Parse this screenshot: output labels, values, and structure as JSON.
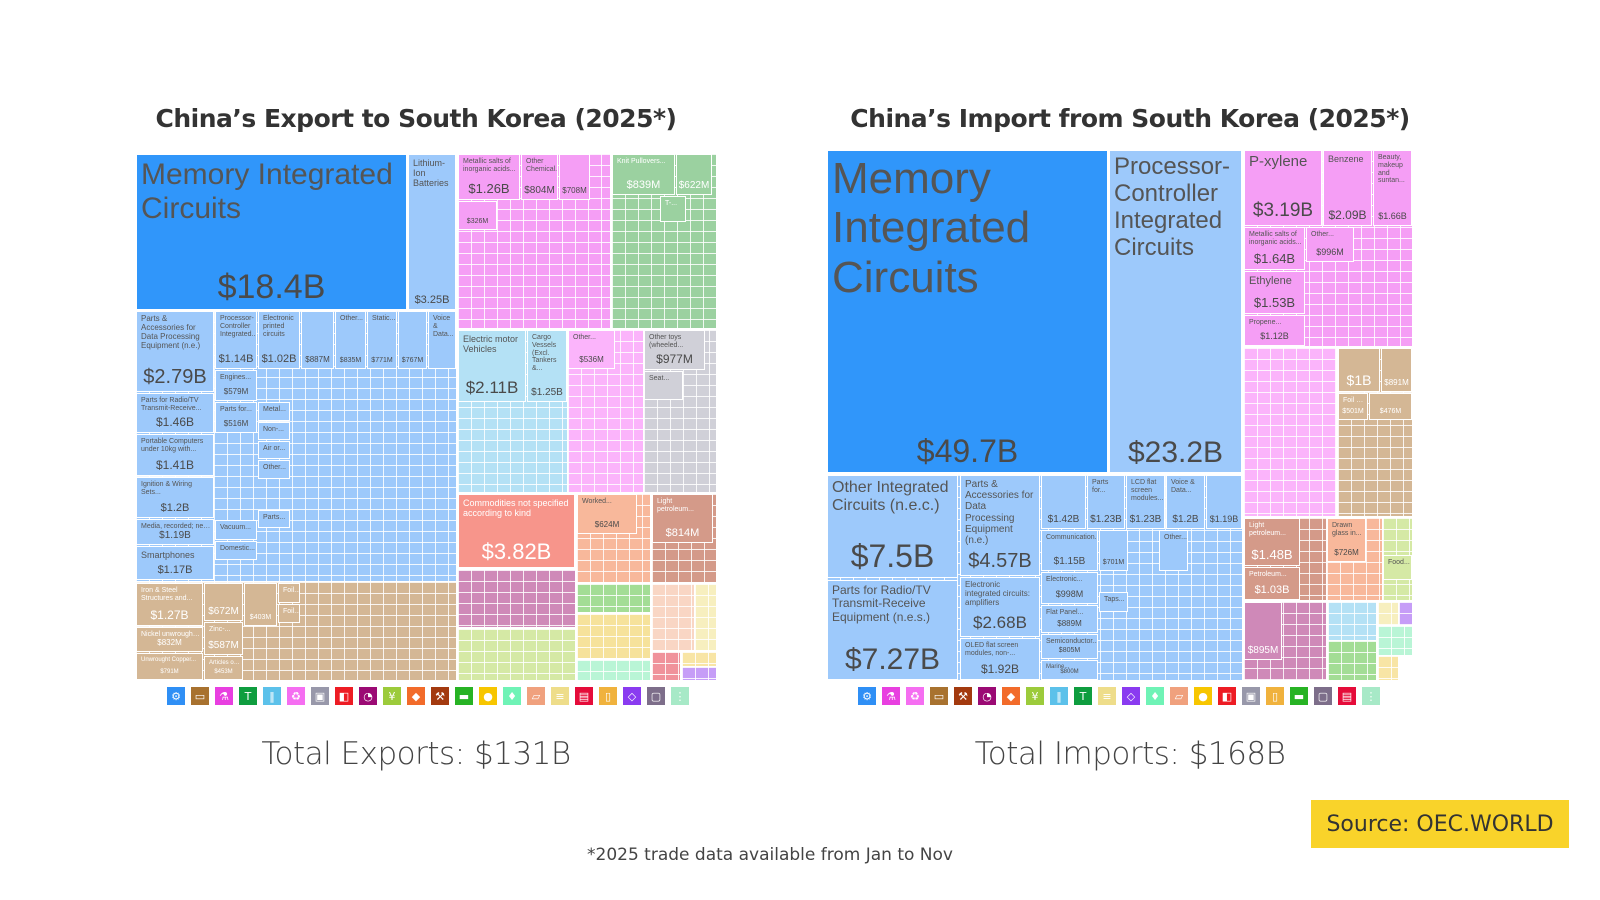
{
  "legend_colors": {
    "machines": "#3096fa",
    "machines_light": "#9dc9fb",
    "metals": "#d4b795",
    "chemicals": "#f59ef5",
    "textiles": "#9bd1a0",
    "transport": "#b4e1f5",
    "plastics": "#fbb4fb",
    "misc": "#d0d0d8",
    "commodities": "#f7958b",
    "stone": "#f8b89b",
    "mineral": "#d49a89",
    "purple": "#cf89b8",
    "lime": "#d5e9a5",
    "animal": "#a3dd95",
    "paper": "#f6e29b",
    "mint": "#b9f5d6",
    "peach": "#f9d6c4",
    "pale_yellow": "#f7efbf",
    "red": "#f0929b",
    "light_yellow": "#f8e5a5",
    "violet": "#c69df7"
  },
  "chart_data": [
    {
      "type": "treemap",
      "title": "China’s Export to South Korea (2025*)",
      "total": "Total Exports: $131B",
      "items": [
        {
          "label": "Memory Integrated Circuits",
          "value": "$18.4B"
        },
        {
          "label": "Lithium-Ion Batteries",
          "value": "$3.25B"
        },
        {
          "label": "Parts & Accessories for Data Processing Equipment (n.e.)",
          "value": "$2.79B"
        },
        {
          "label": "Processor-Controller Integrated...",
          "value": "$1.14B"
        },
        {
          "label": "Electronic printed circuits",
          "value": "$1.02B"
        },
        {
          "label": "",
          "value": "$887M"
        },
        {
          "label": "Other...",
          "value": "$835M"
        },
        {
          "label": "Static...",
          "value": "$771M"
        },
        {
          "label": "",
          "value": "$767M"
        },
        {
          "label": "Voice & Data...",
          "value": ""
        },
        {
          "label": "Parts for Radio/TV Transmit-Receive...",
          "value": "$1.46B"
        },
        {
          "label": "Portable Computers under 10kg with...",
          "value": "$1.41B"
        },
        {
          "label": "Ignition & Wiring Sets...",
          "value": "$1.2B"
        },
        {
          "label": "Media, recorded; nes...",
          "value": "$1.19B"
        },
        {
          "label": "Smartphones",
          "value": "$1.17B"
        },
        {
          "label": "Engines...",
          "value": "$579M"
        },
        {
          "label": "Parts for...",
          "value": "$516M"
        },
        {
          "label": "Metal...",
          "value": ""
        },
        {
          "label": "Non-...",
          "value": ""
        },
        {
          "label": "Air or...",
          "value": ""
        },
        {
          "label": "Other...",
          "value": ""
        },
        {
          "label": "Parts...",
          "value": ""
        },
        {
          "label": "Vacuum...",
          "value": ""
        },
        {
          "label": "Domestic...",
          "value": ""
        },
        {
          "label": "Iron & Steel Structures and...",
          "value": "$1.27B"
        },
        {
          "label": "Nickel unwrought...",
          "value": "$832M"
        },
        {
          "label": "Unwrought Copper...",
          "value": "$791M"
        },
        {
          "label": "",
          "value": "$672M"
        },
        {
          "label": "Zinc-...",
          "value": "$587M"
        },
        {
          "label": "Articles of...",
          "value": "$453M"
        },
        {
          "label": "",
          "value": "$403M"
        },
        {
          "label": "Foil...",
          "value": ""
        },
        {
          "label": "Foil...",
          "value": ""
        },
        {
          "label": "Metallic salts of inorganic acids...",
          "value": "$1.26B"
        },
        {
          "label": "Other Chemical...",
          "value": "$804M"
        },
        {
          "label": "",
          "value": "$708M"
        },
        {
          "label": "",
          "value": "$326M"
        },
        {
          "label": "Knit Pullovers...",
          "value": "$839M"
        },
        {
          "label": "",
          "value": "$622M"
        },
        {
          "label": "T-...",
          "value": ""
        },
        {
          "label": "Electric motor Vehicles",
          "value": "$2.11B"
        },
        {
          "label": "Cargo Vessels (Excl. Tankers &...",
          "value": "$1.25B"
        },
        {
          "label": "Other...",
          "value": "$536M"
        },
        {
          "label": "Other toys (wheeled...",
          "value": "$977M"
        },
        {
          "label": "Seat...",
          "value": ""
        },
        {
          "label": "Commodities not specified according to kind",
          "value": "$3.82B"
        },
        {
          "label": "Worked...",
          "value": "$624M"
        },
        {
          "label": "Light petroleum...",
          "value": "$814M"
        }
      ],
      "legend": [
        {
          "icon": "gear-icon",
          "color": "#2f8ff5"
        },
        {
          "icon": "metal-bar-icon",
          "color": "#a8722f"
        },
        {
          "icon": "flask-icon",
          "color": "#e83fe0"
        },
        {
          "icon": "shirt-icon",
          "color": "#0f9d3f"
        },
        {
          "icon": "road-icon",
          "color": "#5cc1ea"
        },
        {
          "icon": "recycle-icon",
          "color": "#f56ef1"
        },
        {
          "icon": "box-icon",
          "color": "#9898aa"
        },
        {
          "icon": "cube-icon",
          "color": "#ed1c24"
        },
        {
          "icon": "gauge-icon",
          "color": "#9b0a74"
        },
        {
          "icon": "wheat-icon",
          "color": "#9ccb3b"
        },
        {
          "icon": "hide-icon",
          "color": "#f26b2a"
        },
        {
          "icon": "pickaxe-icon",
          "color": "#a33a0f"
        },
        {
          "icon": "animal-icon",
          "color": "#27b324"
        },
        {
          "icon": "food-icon",
          "color": "#f7c600"
        },
        {
          "icon": "footwear-icon",
          "color": "#6ff3b6"
        },
        {
          "icon": "stone-icon",
          "color": "#f0a17e"
        },
        {
          "icon": "paper-icon",
          "color": "#eedd8a"
        },
        {
          "icon": "weapon-icon",
          "color": "#e50c3a"
        },
        {
          "icon": "wood-icon",
          "color": "#f0b23d"
        },
        {
          "icon": "diamond-icon",
          "color": "#8a3bf0"
        },
        {
          "icon": "art-icon",
          "color": "#7d6e8a"
        },
        {
          "icon": "fiber-icon",
          "color": "#a7e9c7"
        }
      ]
    },
    {
      "type": "treemap",
      "title": "China’s Import from South Korea (2025*)",
      "total": "Total Imports: $168B",
      "items": [
        {
          "label": "Memory Integrated Circuits",
          "value": "$49.7B"
        },
        {
          "label": "Processor-Controller Integrated Circuits",
          "value": "$23.2B"
        },
        {
          "label": "Other Integrated Circuits (n.e.c.)",
          "value": "$7.5B"
        },
        {
          "label": "Parts for Radio/TV Transmit-Receive Equipment (n.e.s.)",
          "value": "$7.27B"
        },
        {
          "label": "Parts & Accessories for Data Processing Equipment (n.e.)",
          "value": "$4.57B"
        },
        {
          "label": "Electronic integrated circuits: amplifiers",
          "value": "$2.68B"
        },
        {
          "label": "OLED flat screen modules, non-...",
          "value": "$1.92B"
        },
        {
          "label": "",
          "value": "$1.42B"
        },
        {
          "label": "Parts for...",
          "value": "$1.23B"
        },
        {
          "label": "LCD flat screen modules...",
          "value": "$1.23B"
        },
        {
          "label": "Voice & Data...",
          "value": "$1.2B"
        },
        {
          "label": "",
          "value": "$1.19B"
        },
        {
          "label": "Communication...",
          "value": "$1.15B"
        },
        {
          "label": "Electronic...",
          "value": "$998M"
        },
        {
          "label": "Flat Panel...",
          "value": "$889M"
        },
        {
          "label": "Semiconductor...",
          "value": "$805M"
        },
        {
          "label": "Marine...",
          "value": "$800M"
        },
        {
          "label": "",
          "value": "$701M"
        },
        {
          "label": "Other...",
          "value": ""
        },
        {
          "label": "Taps...",
          "value": ""
        },
        {
          "label": "P-xylene",
          "value": "$3.19B"
        },
        {
          "label": "Benzene",
          "value": "$2.09B"
        },
        {
          "label": "Beauty, makeup and suntan...",
          "value": "$1.66B"
        },
        {
          "label": "Metallic salts of inorganic acids...",
          "value": "$1.64B"
        },
        {
          "label": "Other...",
          "value": "$996M"
        },
        {
          "label": "Ethylene",
          "value": "$1.53B"
        },
        {
          "label": "Propene...",
          "value": "$1.12B"
        },
        {
          "label": "",
          "value": "$1B"
        },
        {
          "label": "",
          "value": "$891M"
        },
        {
          "label": "Foil of...",
          "value": "$501M"
        },
        {
          "label": "",
          "value": "$476M"
        },
        {
          "label": "Light petroleum...",
          "value": "$1.48B"
        },
        {
          "label": "Petroleum...",
          "value": "$1.03B"
        },
        {
          "label": "Drawn glass in...",
          "value": "$726M"
        },
        {
          "label": "Food...",
          "value": ""
        },
        {
          "label": "",
          "value": "$895M"
        }
      ],
      "legend": [
        {
          "icon": "gear-icon",
          "color": "#2f8ff5"
        },
        {
          "icon": "flask-icon",
          "color": "#e83fe0"
        },
        {
          "icon": "recycle-icon",
          "color": "#f56ef1"
        },
        {
          "icon": "metal-bar-icon",
          "color": "#a8722f"
        },
        {
          "icon": "pickaxe-icon",
          "color": "#a33a0f"
        },
        {
          "icon": "gauge-icon",
          "color": "#9b0a74"
        },
        {
          "icon": "hide-icon",
          "color": "#f26b2a"
        },
        {
          "icon": "wheat-icon",
          "color": "#9ccb3b"
        },
        {
          "icon": "road-icon",
          "color": "#5cc1ea"
        },
        {
          "icon": "shirt-icon",
          "color": "#0f9d3f"
        },
        {
          "icon": "paper-icon",
          "color": "#eedd8a"
        },
        {
          "icon": "diamond-icon",
          "color": "#8a3bf0"
        },
        {
          "icon": "footwear-icon",
          "color": "#6ff3b6"
        },
        {
          "icon": "stone-icon",
          "color": "#f0a17e"
        },
        {
          "icon": "food-icon",
          "color": "#f7c600"
        },
        {
          "icon": "cube-icon",
          "color": "#ed1c24"
        },
        {
          "icon": "box-icon",
          "color": "#9898aa"
        },
        {
          "icon": "wood-icon",
          "color": "#f0b23d"
        },
        {
          "icon": "animal-icon",
          "color": "#27b324"
        },
        {
          "icon": "art-icon",
          "color": "#7d6e8a"
        },
        {
          "icon": "weapon-icon",
          "color": "#e50c3a"
        },
        {
          "icon": "fiber-icon",
          "color": "#a7e9c7"
        }
      ]
    }
  ],
  "footnote": "*2025 trade data available from Jan to Nov",
  "source": "Source: OEC.WORLD"
}
